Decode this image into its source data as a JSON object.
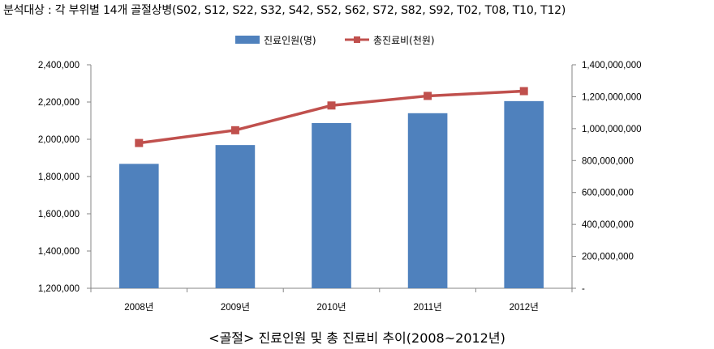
{
  "header_note": "분석대상 : 각 부위별 14개 골절상병(S02, S12, S22, S32, S42, S52, S62, S72, S82, S92, T02, T08, T10, T12)",
  "caption": "<골절> 진료인원 및 총 진료비 추이(2008~2012년)",
  "colors": {
    "bar": "#4f81bd",
    "line": "#c0504d",
    "axis": "#868686"
  },
  "chart_data": {
    "type": "bar",
    "categories": [
      "2008년",
      "2009년",
      "2010년",
      "2011년",
      "2012년"
    ],
    "series": [
      {
        "name": "진료인원(명)",
        "type": "bar",
        "axis": "left",
        "values": [
          1868000,
          1969000,
          2087000,
          2140000,
          2205000
        ]
      },
      {
        "name": "총진료비(천원)",
        "type": "line",
        "axis": "right",
        "values": [
          910000000,
          990000000,
          1145000000,
          1205000000,
          1235000000
        ]
      }
    ],
    "ylim_left": [
      1200000,
      2400000
    ],
    "yticks_left": [
      "1,200,000",
      "1,400,000",
      "1,600,000",
      "1,800,000",
      "2,000,000",
      "2,200,000",
      "2,400,000"
    ],
    "ylim_right": [
      0,
      1400000000
    ],
    "yticks_right": [
      "-",
      "200,000,000",
      "400,000,000",
      "600,000,000",
      "800,000,000",
      "1,000,000,000",
      "1,200,000,000",
      "1,400,000,000"
    ],
    "legend_position": "top-center",
    "grid": false
  }
}
